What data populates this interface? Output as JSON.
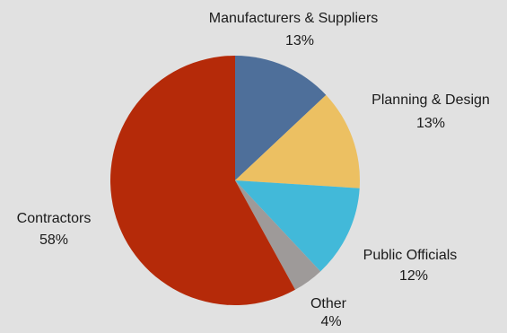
{
  "chart_data": {
    "type": "pie",
    "title": "",
    "slices": [
      {
        "label": "Manufacturers & Suppliers",
        "percent_label": "13%",
        "value": 13,
        "color": "#4e6f9a"
      },
      {
        "label": "Planning & Design",
        "percent_label": "13%",
        "value": 13,
        "color": "#ecc062"
      },
      {
        "label": "Public Officials",
        "percent_label": "12%",
        "value": 12,
        "color": "#42b9d9"
      },
      {
        "label": "Other",
        "percent_label": "4%",
        "value": 4,
        "color": "#9e9a99"
      },
      {
        "label": "Contractors",
        "percent_label": "58%",
        "value": 58,
        "color": "#b52a09"
      }
    ],
    "start_angle_deg": 0,
    "direction": "clockwise",
    "legend": "none"
  }
}
